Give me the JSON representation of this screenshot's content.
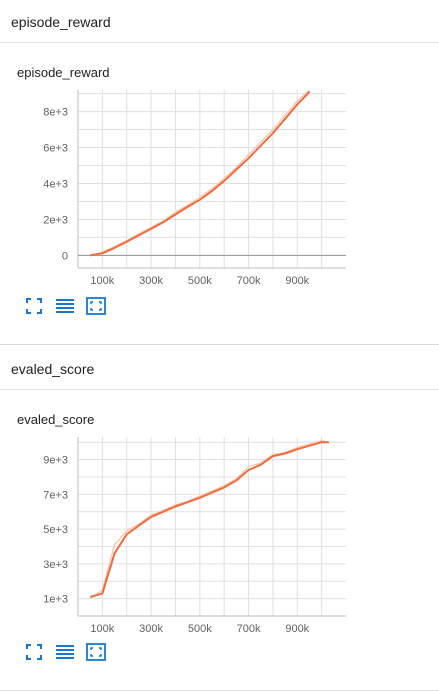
{
  "sections": [
    {
      "header": "episode_reward",
      "card_title": "episode_reward",
      "icons": [
        "fit-domain-icon",
        "data-table-icon",
        "expand-chart-icon"
      ]
    },
    {
      "header": "evaled_score",
      "card_title": "evaled_score",
      "icons": [
        "fit-domain-icon",
        "data-table-icon",
        "expand-chart-icon"
      ]
    }
  ],
  "colors": {
    "line": "#f26b3a",
    "raw": "#f9c3ae",
    "grid": "#e0e0e0",
    "zero": "#9e9e9e"
  },
  "chart_data": [
    {
      "type": "line",
      "title": "episode_reward",
      "xlim": [
        0,
        1100000
      ],
      "ylim": [
        -700,
        9200
      ],
      "x_ticks": [
        100000,
        300000,
        500000,
        700000,
        900000
      ],
      "x_tick_labels": [
        "100k",
        "300k",
        "500k",
        "700k",
        "900k"
      ],
      "y_ticks": [
        0,
        2000,
        4000,
        6000,
        8000
      ],
      "y_tick_labels": [
        "0",
        "2e+3",
        "4e+3",
        "6e+3",
        "8e+3"
      ],
      "grid": true,
      "series": [
        {
          "x": [
            50000,
            100000,
            150000,
            200000,
            250000,
            300000,
            350000,
            400000,
            450000,
            500000,
            550000,
            600000,
            650000,
            700000,
            750000,
            800000,
            850000,
            900000,
            950000
          ],
          "smoothed": [
            0,
            120,
            420,
            760,
            1120,
            1480,
            1850,
            2280,
            2700,
            3100,
            3580,
            4150,
            4780,
            5400,
            6100,
            6800,
            7600,
            8400,
            9100
          ],
          "raw": [
            0,
            180,
            500,
            820,
            1200,
            1560,
            1920,
            2400,
            2800,
            3250,
            3700,
            4300,
            4900,
            5600,
            6300,
            7000,
            7800,
            8600,
            9200
          ]
        }
      ]
    },
    {
      "type": "line",
      "title": "evaled_score",
      "xlim": [
        0,
        1100000
      ],
      "ylim": [
        0,
        10300
      ],
      "x_ticks": [
        100000,
        300000,
        500000,
        700000,
        900000
      ],
      "x_tick_labels": [
        "100k",
        "300k",
        "500k",
        "700k",
        "900k"
      ],
      "y_ticks": [
        1000,
        3000,
        5000,
        7000,
        9000
      ],
      "y_tick_labels": [
        "1e+3",
        "3e+3",
        "5e+3",
        "7e+3",
        "9e+3"
      ],
      "grid": true,
      "series": [
        {
          "x": [
            50000,
            100000,
            150000,
            200000,
            250000,
            300000,
            350000,
            400000,
            450000,
            500000,
            550000,
            600000,
            650000,
            700000,
            750000,
            800000,
            850000,
            900000,
            950000,
            1000000,
            1030000
          ],
          "smoothed": [
            1100,
            1300,
            3600,
            4700,
            5200,
            5700,
            6000,
            6300,
            6550,
            6800,
            7100,
            7400,
            7800,
            8400,
            8700,
            9200,
            9350,
            9600,
            9800,
            10000,
            10000
          ],
          "raw": [
            1000,
            1500,
            4100,
            4900,
            5300,
            5800,
            6100,
            6400,
            6600,
            6900,
            7200,
            7500,
            7900,
            8600,
            8800,
            9300,
            9400,
            9700,
            9900,
            10100,
            10000
          ]
        }
      ]
    }
  ]
}
